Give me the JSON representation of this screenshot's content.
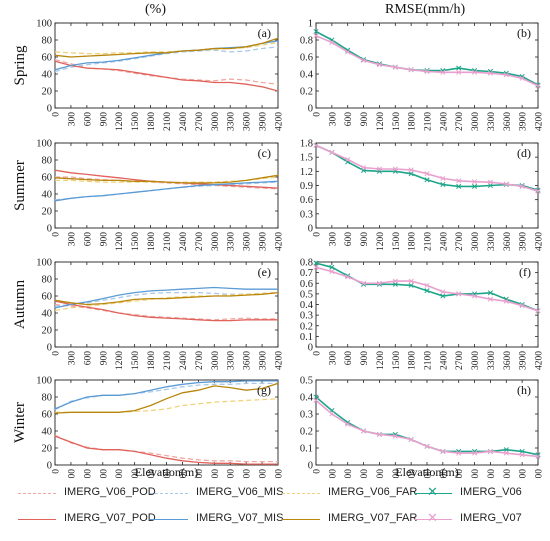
{
  "figure": {
    "left_header": "(%)",
    "right_header": "RMSE(mm/h)",
    "xlabel": "Elevation(m)"
  },
  "colors": {
    "V06_POD": "#f2a7a2",
    "V06_MIS": "#a9c8ea",
    "V06_FAR": "#f0d27a",
    "V07_POD": "#e0625b",
    "V07_MIS": "#5b9bd5",
    "V07_FAR": "#b8860b",
    "RMSE_V06": "#1fa58a",
    "RMSE_V07": "#e9a0cf"
  },
  "legend": [
    {
      "key": "V06_POD",
      "label": "IMERG_V06_POD",
      "dashed": true
    },
    {
      "key": "V06_MIS",
      "label": "IMERG_V06_MIS",
      "dashed": true
    },
    {
      "key": "V06_FAR",
      "label": "IMERG_V06_FAR",
      "dashed": true
    },
    {
      "key": "RMSE_V06",
      "label": "IMERG_V06",
      "marker": "x"
    },
    {
      "key": "V07_POD",
      "label": "IMERG_V07_POD",
      "dashed": false
    },
    {
      "key": "V07_MIS",
      "label": "IMERG_V07_MIS",
      "dashed": false
    },
    {
      "key": "V07_FAR",
      "label": "IMERG_V07_FAR",
      "dashed": false
    },
    {
      "key": "RMSE_V07",
      "label": "IMERG_V07",
      "marker": "x"
    }
  ],
  "chart_data": [
    {
      "type": "line",
      "season": "Spring",
      "tag": "(a)",
      "x": [
        0,
        300,
        600,
        900,
        1200,
        1500,
        1800,
        2100,
        2400,
        2700,
        3000,
        3300,
        3600,
        3900,
        4200
      ],
      "ylim": [
        0,
        100
      ],
      "yticks": [
        0,
        20,
        40,
        60,
        80,
        100
      ],
      "series": [
        {
          "name": "IMERG_V06_POD",
          "values": [
            57,
            52,
            47,
            46,
            44,
            41,
            38,
            36,
            34,
            33,
            32,
            34,
            33,
            30,
            28
          ]
        },
        {
          "name": "IMERG_V06_MIS",
          "values": [
            43,
            48,
            51,
            53,
            55,
            58,
            61,
            64,
            66,
            67,
            68,
            66,
            67,
            70,
            72
          ]
        },
        {
          "name": "IMERG_V06_FAR",
          "values": [
            66,
            65,
            64,
            64,
            65,
            65,
            66,
            66,
            67,
            68,
            69,
            70,
            71,
            74,
            77
          ]
        },
        {
          "name": "IMERG_V07_POD",
          "values": [
            55,
            50,
            47,
            46,
            45,
            42,
            39,
            36,
            33,
            32,
            30,
            30,
            28,
            25,
            20
          ]
        },
        {
          "name": "IMERG_V07_MIS",
          "values": [
            45,
            50,
            53,
            54,
            56,
            59,
            62,
            65,
            67,
            68,
            70,
            71,
            72,
            76,
            79
          ]
        },
        {
          "name": "IMERG_V07_FAR",
          "values": [
            62,
            60,
            61,
            62,
            63,
            64,
            65,
            65,
            67,
            68,
            70,
            70,
            72,
            76,
            82
          ]
        }
      ]
    },
    {
      "type": "line",
      "season": "Spring",
      "tag": "(b)",
      "x": [
        0,
        300,
        600,
        900,
        1200,
        1500,
        1800,
        2100,
        2400,
        2700,
        3000,
        3300,
        3600,
        3900,
        4200
      ],
      "ylim": [
        0,
        1
      ],
      "yticks": [
        0,
        0.2,
        0.4,
        0.6,
        0.8,
        1
      ],
      "series": [
        {
          "name": "IMERG_V06",
          "values": [
            0.9,
            0.8,
            0.68,
            0.57,
            0.52,
            0.48,
            0.45,
            0.44,
            0.44,
            0.47,
            0.44,
            0.43,
            0.41,
            0.37,
            0.27
          ]
        },
        {
          "name": "IMERG_V07",
          "values": [
            0.85,
            0.77,
            0.66,
            0.56,
            0.51,
            0.48,
            0.45,
            0.43,
            0.42,
            0.42,
            0.42,
            0.41,
            0.39,
            0.35,
            0.26
          ]
        }
      ]
    },
    {
      "type": "line",
      "season": "Summer",
      "tag": "(c)",
      "x": [
        0,
        300,
        600,
        900,
        1200,
        1500,
        1800,
        2100,
        2400,
        2700,
        3000,
        3300,
        3600,
        3900,
        4200
      ],
      "ylim": [
        0,
        100
      ],
      "yticks": [
        0,
        20,
        40,
        60,
        80,
        100
      ],
      "series": [
        {
          "name": "IMERG_V06_POD",
          "values": [
            60,
            60,
            58,
            57,
            56,
            55,
            54,
            53,
            52,
            51,
            50,
            49,
            48,
            47,
            46
          ]
        },
        {
          "name": "IMERG_V06_MIS",
          "values": [
            33,
            35,
            37,
            38,
            40,
            42,
            44,
            46,
            48,
            49,
            50,
            51,
            52,
            53,
            54
          ]
        },
        {
          "name": "IMERG_V06_FAR",
          "values": [
            56,
            56,
            55,
            54,
            54,
            54,
            54,
            54,
            54,
            54,
            54,
            55,
            56,
            58,
            60
          ]
        },
        {
          "name": "IMERG_V07_POD",
          "values": [
            68,
            65,
            63,
            61,
            59,
            57,
            55,
            54,
            53,
            52,
            51,
            50,
            49,
            48,
            47
          ]
        },
        {
          "name": "IMERG_V07_MIS",
          "values": [
            32,
            35,
            37,
            38,
            40,
            42,
            44,
            46,
            48,
            50,
            51,
            52,
            53,
            54,
            55
          ]
        },
        {
          "name": "IMERG_V07_FAR",
          "values": [
            59,
            58,
            57,
            56,
            56,
            55,
            55,
            54,
            53,
            53,
            53,
            54,
            56,
            59,
            62
          ]
        }
      ]
    },
    {
      "type": "line",
      "season": "Summer",
      "tag": "(d)",
      "x": [
        0,
        300,
        600,
        900,
        1200,
        1500,
        1800,
        2100,
        2400,
        2700,
        3000,
        3300,
        3600,
        3900,
        4200
      ],
      "ylim": [
        0,
        1.8
      ],
      "yticks": [
        0,
        0.3,
        0.6,
        0.9,
        1.2,
        1.5,
        1.8
      ],
      "series": [
        {
          "name": "IMERG_V06",
          "values": [
            1.75,
            1.6,
            1.4,
            1.22,
            1.2,
            1.2,
            1.15,
            1.02,
            0.92,
            0.88,
            0.88,
            0.9,
            0.92,
            0.9,
            0.8
          ]
        },
        {
          "name": "IMERG_V07",
          "values": [
            1.75,
            1.6,
            1.45,
            1.28,
            1.25,
            1.25,
            1.23,
            1.15,
            1.05,
            1.0,
            0.98,
            0.97,
            0.93,
            0.88,
            0.78
          ]
        }
      ]
    },
    {
      "type": "line",
      "season": "Autumn",
      "tag": "(e)",
      "x": [
        0,
        300,
        600,
        900,
        1200,
        1500,
        1800,
        2100,
        2400,
        2700,
        3000,
        3300,
        3600,
        3900,
        4200
      ],
      "ylim": [
        0,
        100
      ],
      "yticks": [
        0,
        20,
        40,
        60,
        80,
        100
      ],
      "series": [
        {
          "name": "IMERG_V06_POD",
          "values": [
            50,
            48,
            46,
            43,
            40,
            38,
            36,
            35,
            34,
            33,
            32,
            33,
            34,
            33,
            33
          ]
        },
        {
          "name": "IMERG_V06_MIS",
          "values": [
            48,
            50,
            52,
            55,
            58,
            61,
            63,
            64,
            64,
            64,
            63,
            62,
            62,
            63,
            64
          ]
        },
        {
          "name": "IMERG_V06_FAR",
          "values": [
            43,
            46,
            48,
            50,
            52,
            54,
            56,
            58,
            59,
            60,
            60,
            61,
            62,
            63,
            64
          ]
        },
        {
          "name": "IMERG_V07_POD",
          "values": [
            54,
            50,
            47,
            44,
            40,
            37,
            35,
            34,
            33,
            32,
            31,
            31,
            32,
            32,
            32
          ]
        },
        {
          "name": "IMERG_V07_MIS",
          "values": [
            46,
            50,
            53,
            57,
            61,
            64,
            66,
            67,
            68,
            69,
            70,
            69,
            68,
            68,
            68
          ]
        },
        {
          "name": "IMERG_V07_FAR",
          "values": [
            55,
            52,
            50,
            51,
            53,
            56,
            57,
            57,
            58,
            59,
            60,
            60,
            61,
            62,
            64
          ]
        }
      ]
    },
    {
      "type": "line",
      "season": "Autumn",
      "tag": "(f)",
      "x": [
        0,
        300,
        600,
        900,
        1200,
        1500,
        1800,
        2100,
        2400,
        2700,
        3000,
        3300,
        3600,
        3900,
        4200
      ],
      "ylim": [
        0,
        0.8
      ],
      "yticks": [
        0,
        0.1,
        0.2,
        0.3,
        0.4,
        0.5,
        0.6,
        0.7,
        0.8
      ],
      "series": [
        {
          "name": "IMERG_V06",
          "values": [
            0.79,
            0.75,
            0.67,
            0.59,
            0.59,
            0.59,
            0.58,
            0.53,
            0.48,
            0.5,
            0.5,
            0.51,
            0.45,
            0.4,
            0.34
          ]
        },
        {
          "name": "IMERG_V07",
          "values": [
            0.75,
            0.71,
            0.66,
            0.6,
            0.6,
            0.62,
            0.62,
            0.58,
            0.52,
            0.5,
            0.48,
            0.45,
            0.43,
            0.39,
            0.34
          ]
        }
      ]
    },
    {
      "type": "line",
      "season": "Winter",
      "tag": "(g)",
      "x": [
        0,
        300,
        600,
        900,
        1200,
        1500,
        1800,
        2100,
        2400,
        2700,
        3000,
        3300,
        3600,
        3900,
        4200
      ],
      "ylim": [
        0,
        100
      ],
      "yticks": [
        0,
        20,
        40,
        60,
        80,
        100
      ],
      "series": [
        {
          "name": "IMERG_V06_POD",
          "values": [
            35,
            26,
            21,
            18,
            18,
            16,
            14,
            11,
            8,
            6,
            5,
            5,
            4,
            4,
            4
          ]
        },
        {
          "name": "IMERG_V06_MIS",
          "values": [
            65,
            75,
            79,
            82,
            82,
            84,
            86,
            89,
            92,
            94,
            95,
            95,
            96,
            96,
            96
          ]
        },
        {
          "name": "IMERG_V06_FAR",
          "values": [
            62,
            62,
            62,
            62,
            62,
            63,
            64,
            66,
            70,
            72,
            74,
            75,
            76,
            77,
            78
          ]
        },
        {
          "name": "IMERG_V07_POD",
          "values": [
            34,
            27,
            20,
            18,
            18,
            16,
            12,
            8,
            5,
            3,
            2,
            2,
            1,
            1,
            1
          ]
        },
        {
          "name": "IMERG_V07_MIS",
          "values": [
            66,
            74,
            80,
            82,
            82,
            84,
            88,
            92,
            95,
            97,
            98,
            98,
            99,
            99,
            99
          ]
        },
        {
          "name": "IMERG_V07_FAR",
          "values": [
            61,
            62,
            62,
            62,
            62,
            64,
            70,
            78,
            85,
            88,
            93,
            91,
            88,
            90,
            96
          ]
        }
      ]
    },
    {
      "type": "line",
      "season": "Winter",
      "tag": "(h)",
      "x": [
        0,
        300,
        600,
        900,
        1200,
        1500,
        1800,
        2100,
        2400,
        2700,
        3000,
        3300,
        3600,
        3900,
        4200
      ],
      "ylim": [
        0,
        0.5
      ],
      "yticks": [
        0,
        0.1,
        0.2,
        0.3,
        0.4,
        0.5
      ],
      "series": [
        {
          "name": "IMERG_V06",
          "values": [
            0.4,
            0.32,
            0.25,
            0.2,
            0.18,
            0.18,
            0.15,
            0.11,
            0.08,
            0.08,
            0.08,
            0.08,
            0.09,
            0.08,
            0.06
          ]
        },
        {
          "name": "IMERG_V07",
          "values": [
            0.38,
            0.3,
            0.24,
            0.2,
            0.18,
            0.17,
            0.15,
            0.11,
            0.08,
            0.07,
            0.07,
            0.08,
            0.07,
            0.06,
            0.05
          ]
        }
      ]
    }
  ]
}
